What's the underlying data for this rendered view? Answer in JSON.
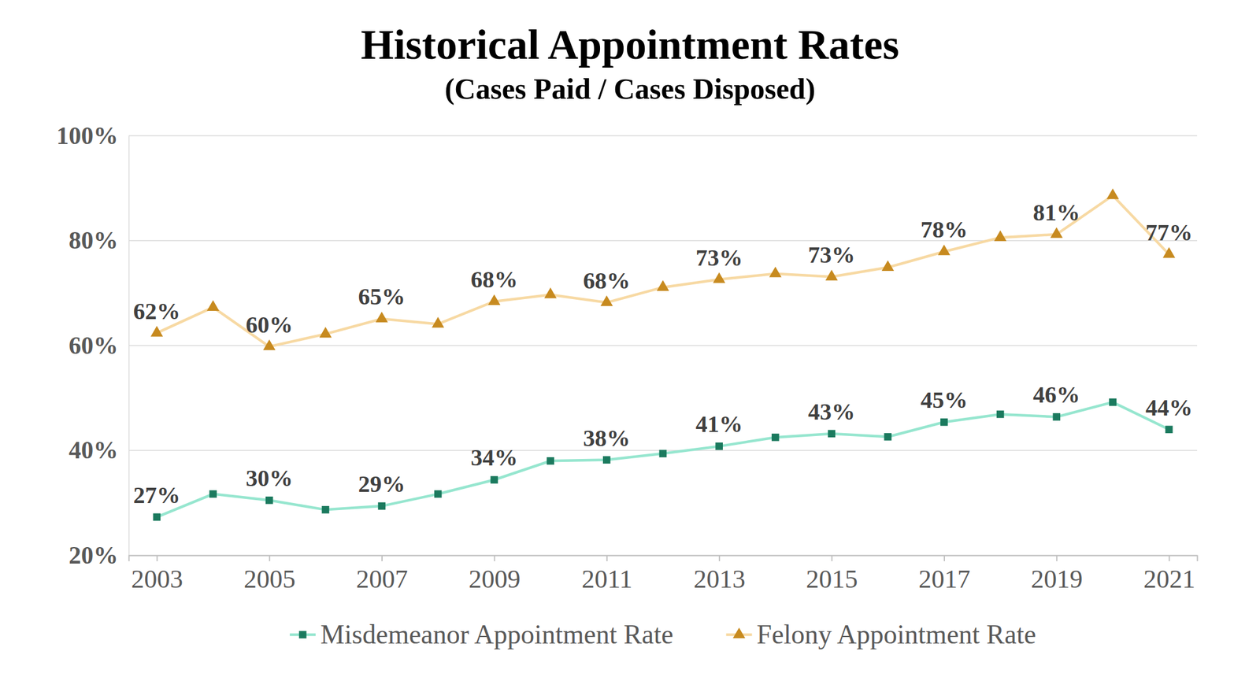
{
  "chart_data": {
    "type": "line",
    "title": "Historical Appointment Rates",
    "subtitle": "(Cases Paid / Cases Disposed)",
    "x": [
      2003,
      2004,
      2005,
      2006,
      2007,
      2008,
      2009,
      2010,
      2011,
      2012,
      2013,
      2014,
      2015,
      2016,
      2017,
      2018,
      2019,
      2020,
      2021
    ],
    "xlim": [
      2002.5,
      2021.5
    ],
    "xticks": [
      2003,
      2005,
      2007,
      2009,
      2011,
      2013,
      2015,
      2017,
      2019,
      2021
    ],
    "ylim": [
      20,
      100
    ],
    "yticks": [
      {
        "value": 20,
        "label": "20%"
      },
      {
        "value": 40,
        "label": "40%"
      },
      {
        "value": 60,
        "label": "60%"
      },
      {
        "value": 80,
        "label": "80%"
      },
      {
        "value": 100,
        "label": "100%"
      }
    ],
    "grid": true,
    "legend": "bottom",
    "data_labels": true,
    "series": [
      {
        "name": "Misdemeanor Appointment Rate",
        "color": "#96e6cf",
        "marker": "square",
        "values": [
          27.3,
          31.7,
          30.5,
          28.7,
          29.4,
          31.7,
          34.4,
          38.0,
          38.2,
          39.4,
          40.8,
          42.5,
          43.2,
          42.6,
          45.4,
          46.9,
          46.4,
          49.2,
          44.0
        ],
        "value_labels": [
          "27%",
          null,
          "30%",
          null,
          "29%",
          null,
          "34%",
          null,
          "38%",
          null,
          "41%",
          null,
          "43%",
          null,
          "45%",
          null,
          "46%",
          null,
          "44%"
        ]
      },
      {
        "name": "Felony Appointment Rate",
        "color": "#f7d9a3",
        "marker": "triangle",
        "values": [
          62.4,
          67.3,
          59.8,
          62.2,
          65.1,
          64.1,
          68.4,
          69.7,
          68.2,
          71.1,
          72.6,
          73.7,
          73.1,
          74.9,
          77.9,
          80.6,
          81.2,
          88.6,
          77.4
        ],
        "value_labels": [
          "62%",
          null,
          "60%",
          null,
          "65%",
          null,
          "68%",
          null,
          "68%",
          null,
          "73%",
          null,
          "73%",
          null,
          "78%",
          null,
          "81%",
          null,
          "77%"
        ]
      }
    ]
  }
}
